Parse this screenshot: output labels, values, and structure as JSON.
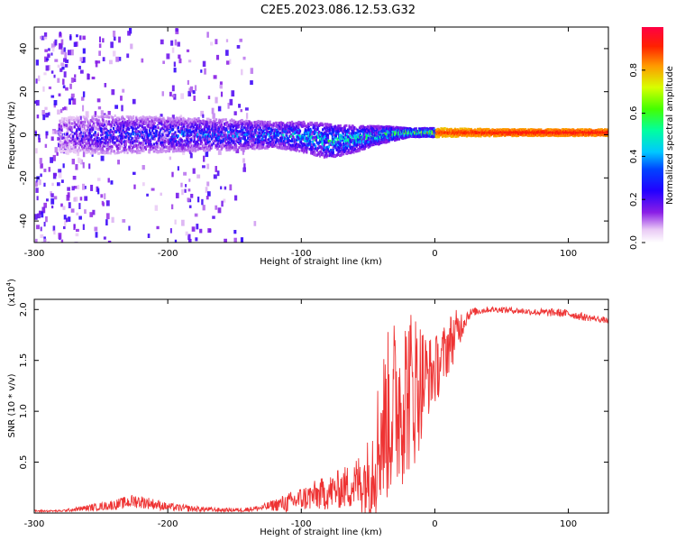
{
  "title": "C2E5.2023.086.12.53.G32",
  "colorbar": {
    "label": "Normalized spectral amplitude",
    "ticks": [
      "0.0",
      "0.2",
      "0.4",
      "0.6",
      "0.8"
    ],
    "tick_values": [
      0.0,
      0.2,
      0.4,
      0.6,
      0.8
    ],
    "range": [
      0,
      1
    ]
  },
  "chart_data": [
    {
      "type": "heatmap",
      "xlabel": "Height of straight line (km)",
      "ylabel": "Frequency (Hz)",
      "xlim": [
        -300,
        130
      ],
      "ylim": [
        -50,
        50
      ],
      "xticks": [
        -300,
        -200,
        -100,
        0,
        100
      ],
      "xtick_labels": [
        "-300",
        "-200",
        "-100",
        "0",
        "100"
      ],
      "yticks": [
        -40,
        -20,
        0,
        20,
        40
      ],
      "ytick_labels": [
        "-40",
        "-20",
        "0",
        "20",
        "40"
      ],
      "colormap": "rainbow (purple low to red high)",
      "band_center_hz": [
        [
          -280,
          0
        ],
        [
          -250,
          0
        ],
        [
          -200,
          0
        ],
        [
          -150,
          0
        ],
        [
          -120,
          0
        ],
        [
          -100,
          -1
        ],
        [
          -80,
          -3
        ],
        [
          -60,
          -2
        ],
        [
          -40,
          0
        ],
        [
          -20,
          1
        ],
        [
          0,
          1
        ],
        [
          50,
          1
        ],
        [
          100,
          1
        ],
        [
          130,
          1
        ]
      ],
      "band_halfwidth_hz": [
        [
          -280,
          8
        ],
        [
          -250,
          9
        ],
        [
          -200,
          8
        ],
        [
          -150,
          7
        ],
        [
          -120,
          6
        ],
        [
          -100,
          7
        ],
        [
          -80,
          8
        ],
        [
          -60,
          6
        ],
        [
          -40,
          4
        ],
        [
          -20,
          2
        ],
        [
          0,
          2
        ],
        [
          50,
          1.5
        ],
        [
          100,
          1.5
        ],
        [
          130,
          1.5
        ]
      ],
      "band_peak_amplitude": [
        [
          -280,
          0.25
        ],
        [
          -250,
          0.35
        ],
        [
          -200,
          0.4
        ],
        [
          -150,
          0.45
        ],
        [
          -120,
          0.5
        ],
        [
          -100,
          0.55
        ],
        [
          -80,
          0.6
        ],
        [
          -60,
          0.6
        ],
        [
          -40,
          0.65
        ],
        [
          -20,
          0.8
        ],
        [
          0,
          0.9
        ],
        [
          50,
          0.95
        ],
        [
          100,
          0.95
        ],
        [
          130,
          0.95
        ]
      ]
    },
    {
      "type": "line",
      "xlabel": "Height of straight line (km)",
      "ylabel": "SNR (10 * v/v)",
      "y_multiplier_label": "(x10",
      "y_multiplier_exp": "4",
      "y_multiplier_close": ")",
      "xlim": [
        -300,
        130
      ],
      "ylim": [
        0,
        2.1
      ],
      "xticks": [
        -300,
        -200,
        -100,
        0,
        100
      ],
      "xtick_labels": [
        "-300",
        "-200",
        "-100",
        "0",
        "100"
      ],
      "yticks": [
        0.5,
        1.0,
        1.5,
        2.0
      ],
      "ytick_labels": [
        "0.5",
        "1.0",
        "1.5",
        "2.0"
      ],
      "color": "#ee3333",
      "series": [
        {
          "values_x": [
            -300,
            -280,
            -260,
            -240,
            -225,
            -215,
            -200,
            -180,
            -160,
            -145,
            -130,
            -120,
            -110,
            -100,
            -90,
            -80,
            -70,
            -60,
            -50,
            -45,
            -40,
            -35,
            -30,
            -25,
            -20,
            -15,
            -10,
            -5,
            0,
            5,
            10,
            15,
            20,
            25,
            30,
            40,
            50,
            60,
            70,
            80,
            90,
            100,
            110,
            120,
            130
          ],
          "values_y": [
            0.02,
            0.02,
            0.05,
            0.08,
            0.12,
            0.1,
            0.06,
            0.04,
            0.03,
            0.03,
            0.05,
            0.08,
            0.1,
            0.14,
            0.17,
            0.2,
            0.24,
            0.28,
            0.35,
            0.55,
            0.8,
            0.95,
            1.05,
            1.15,
            1.2,
            1.25,
            1.3,
            1.35,
            1.4,
            1.5,
            1.65,
            1.75,
            1.85,
            1.95,
            1.98,
            2.0,
            2.0,
            1.99,
            1.98,
            1.97,
            1.97,
            1.96,
            1.93,
            1.91,
            1.89
          ],
          "noise_amplitude_y": [
            0.01,
            0.01,
            0.03,
            0.05,
            0.07,
            0.06,
            0.04,
            0.03,
            0.02,
            0.02,
            0.03,
            0.06,
            0.1,
            0.12,
            0.15,
            0.17,
            0.2,
            0.25,
            0.4,
            0.6,
            0.75,
            0.85,
            0.9,
            0.9,
            0.85,
            0.8,
            0.6,
            0.4,
            0.35,
            0.3,
            0.3,
            0.25,
            0.15,
            0.06,
            0.04,
            0.03,
            0.03,
            0.03,
            0.03,
            0.04,
            0.04,
            0.04,
            0.04,
            0.03,
            0.03
          ]
        }
      ]
    }
  ]
}
